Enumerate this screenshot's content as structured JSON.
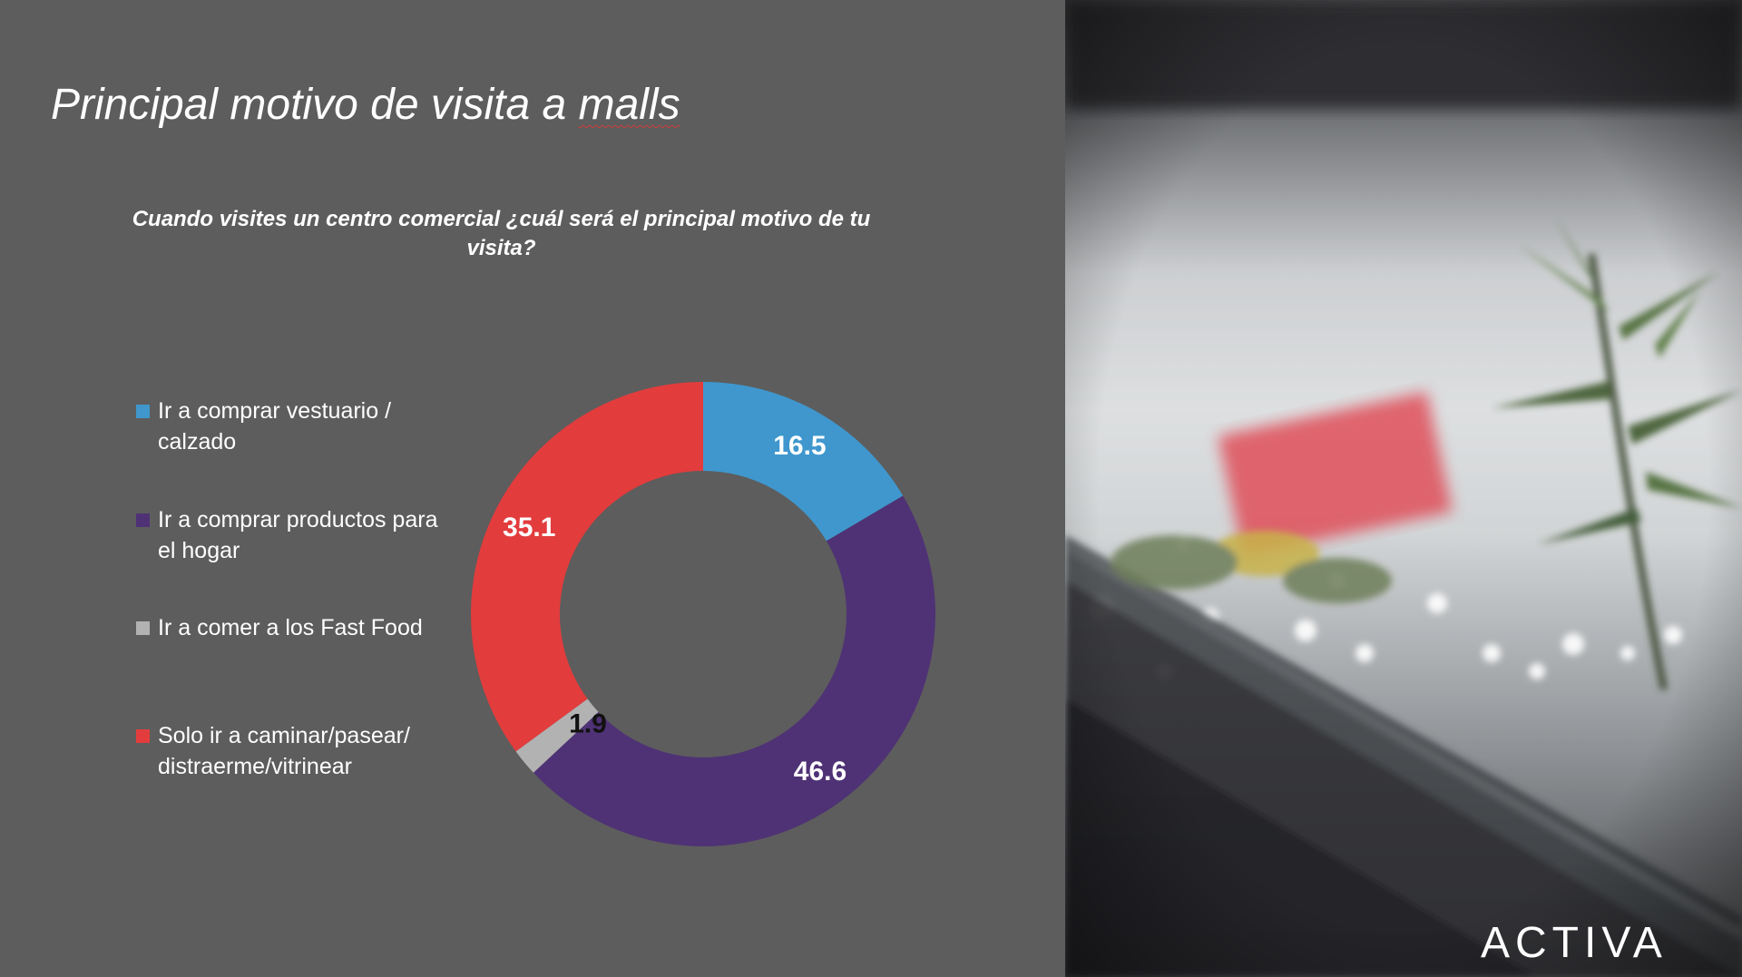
{
  "slide": {
    "title_main": "Principal motivo de visita a ",
    "title_underlined": "malls",
    "question": "Cuando visites un centro comercial ¿cuál será el principal motivo de tu visita?"
  },
  "brand": {
    "logo_text": "ACTIVA"
  },
  "colors": {
    "background": "#5d5d5d",
    "blue": "#3f97cd",
    "purple": "#4f3275",
    "gray": "#b2b2b2",
    "red": "#e23c3d"
  },
  "chart_data": {
    "type": "pie",
    "variant": "donut",
    "legend_position": "left",
    "categories": [
      "Ir a comprar vestuario / calzado",
      "Ir a comprar productos para el hogar",
      "Ir a comer a los Fast Food",
      "Solo ir a caminar/pasear/ distraerme/vitrinear"
    ],
    "values": [
      16.5,
      46.6,
      1.9,
      35.1
    ],
    "value_labels": [
      "16.5",
      "46.6",
      "1.9",
      "35.1"
    ],
    "colors": [
      "#3f97cd",
      "#4f3275",
      "#b2b2b2",
      "#e23c3d"
    ],
    "label_colors": [
      "#ffffff",
      "#ffffff",
      "#111111",
      "#ffffff"
    ]
  }
}
